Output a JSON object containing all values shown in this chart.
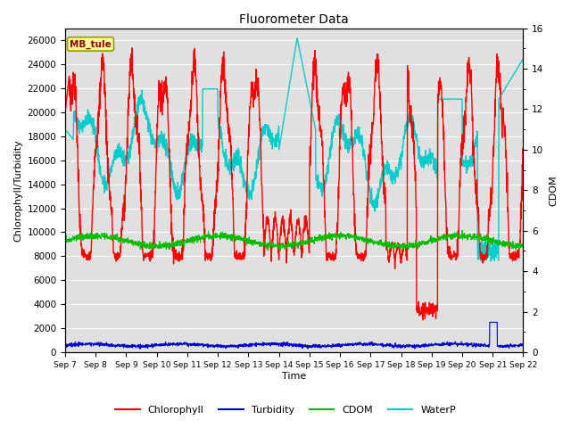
{
  "title": "Fluorometer Data",
  "xlabel": "Time",
  "ylabel_left": "Chlorophyll/Turbidity",
  "ylabel_right": "CDOM",
  "station_label": "MB_tule",
  "ylim_left": [
    0,
    27000
  ],
  "ylim_right": [
    0,
    16
  ],
  "yticks_left": [
    0,
    2000,
    4000,
    6000,
    8000,
    10000,
    12000,
    14000,
    16000,
    18000,
    20000,
    22000,
    24000,
    26000
  ],
  "yticks_right": [
    0,
    2,
    4,
    6,
    8,
    10,
    12,
    14,
    16
  ],
  "xtick_labels": [
    "Sep 7",
    "Sep 8",
    "Sep 9",
    "Sep 10",
    "Sep 11",
    "Sep 12",
    "Sep 13",
    "Sep 14",
    "Sep 15",
    "Sep 16",
    "Sep 17",
    "Sep 18",
    "Sep 19",
    "Sep 20",
    "Sep 21",
    "Sep 22"
  ],
  "colors": {
    "Chlorophyll": "#ff0000",
    "Turbidity": "#0000cc",
    "CDOM": "#00bb00",
    "WaterP": "#00cccc"
  },
  "bg_color": "#e0e0e0",
  "fig_bg": "#ffffff",
  "linewidths": {
    "Chlorophyll": 1.0,
    "Turbidity": 0.8,
    "CDOM": 0.8,
    "WaterP": 1.0
  }
}
